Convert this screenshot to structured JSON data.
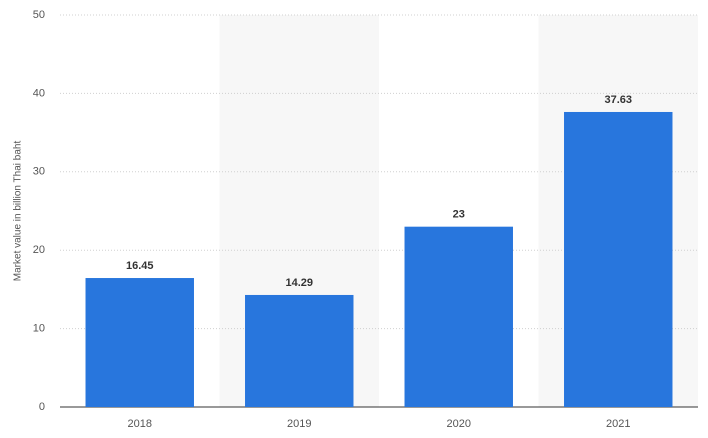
{
  "chart_data": {
    "type": "bar",
    "y_label": "Market value in billion Thai baht",
    "categories": [
      "2018",
      "2019",
      "2020",
      "2021"
    ],
    "values": [
      16.45,
      14.29,
      23,
      37.63
    ],
    "color": "#2876dd",
    "ylim": [
      0,
      50
    ],
    "yticks": [
      0,
      10,
      20,
      30,
      40,
      50
    ],
    "grid": true
  }
}
